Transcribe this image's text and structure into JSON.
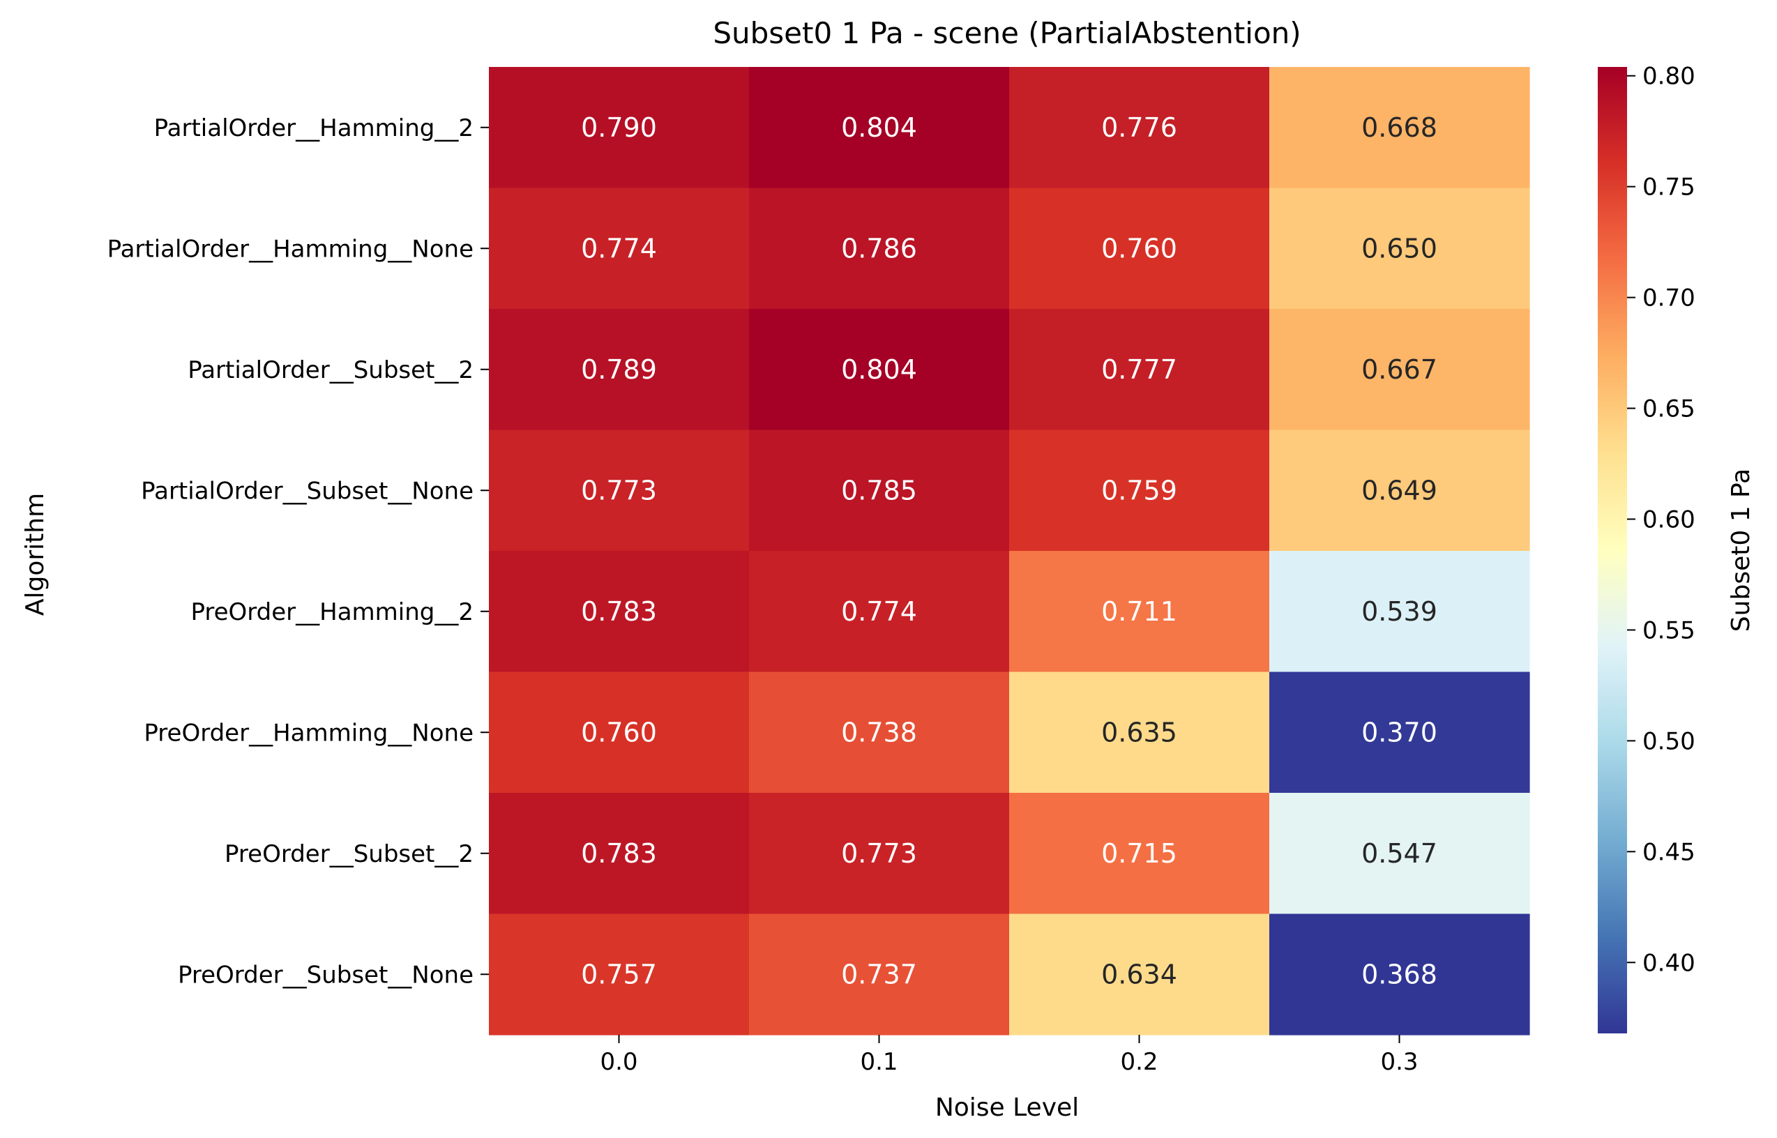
{
  "chart_data": {
    "type": "heatmap",
    "title": "Subset0 1 Pa - scene (PartialAbstention)",
    "xlabel": "Noise Level",
    "ylabel": "Algorithm",
    "colorbar_label": "Subset0 1 Pa",
    "colormap": "RdYlBu_r",
    "vmin": 0.368,
    "vmax": 0.804,
    "x": [
      "0.0",
      "0.1",
      "0.2",
      "0.3"
    ],
    "y": [
      "PartialOrder__Hamming__2",
      "PartialOrder__Hamming__None",
      "PartialOrder__Subset__2",
      "PartialOrder__Subset__None",
      "PreOrder__Hamming__2",
      "PreOrder__Hamming__None",
      "PreOrder__Subset__2",
      "PreOrder__Subset__None"
    ],
    "values": [
      [
        0.79,
        0.804,
        0.776,
        0.668
      ],
      [
        0.774,
        0.786,
        0.76,
        0.65
      ],
      [
        0.789,
        0.804,
        0.777,
        0.667
      ],
      [
        0.773,
        0.785,
        0.759,
        0.649
      ],
      [
        0.783,
        0.774,
        0.711,
        0.539
      ],
      [
        0.76,
        0.738,
        0.635,
        0.37
      ],
      [
        0.783,
        0.773,
        0.715,
        0.547
      ],
      [
        0.757,
        0.737,
        0.634,
        0.368
      ]
    ],
    "value_labels": [
      [
        "0.790",
        "0.804",
        "0.776",
        "0.668"
      ],
      [
        "0.774",
        "0.786",
        "0.760",
        "0.650"
      ],
      [
        "0.789",
        "0.804",
        "0.777",
        "0.667"
      ],
      [
        "0.773",
        "0.785",
        "0.759",
        "0.649"
      ],
      [
        "0.783",
        "0.774",
        "0.711",
        "0.539"
      ],
      [
        "0.760",
        "0.738",
        "0.635",
        "0.370"
      ],
      [
        "0.783",
        "0.773",
        "0.715",
        "0.547"
      ],
      [
        "0.757",
        "0.737",
        "0.634",
        "0.368"
      ]
    ],
    "colorbar_ticks": [
      "0.40",
      "0.45",
      "0.50",
      "0.55",
      "0.60",
      "0.65",
      "0.70",
      "0.75",
      "0.80"
    ]
  }
}
